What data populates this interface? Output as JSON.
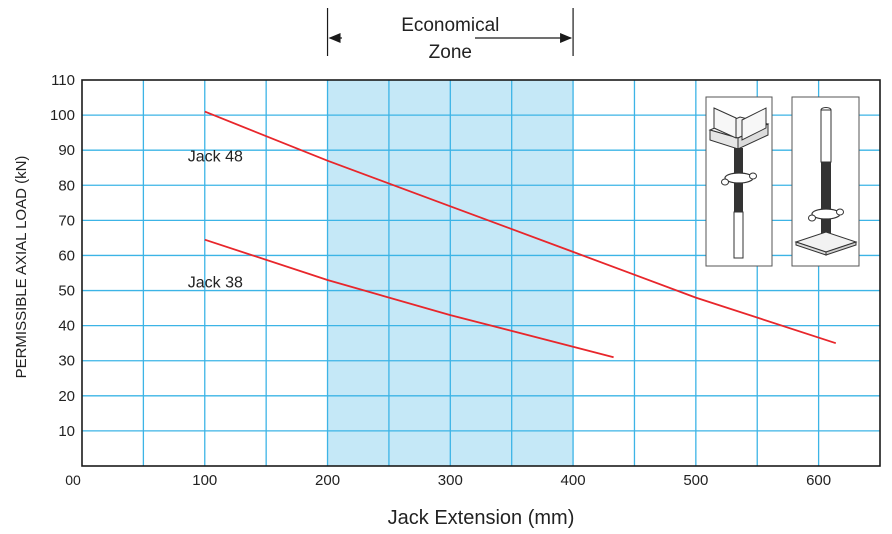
{
  "chart_data": {
    "type": "line",
    "xlabel": "Jack Extension (mm)",
    "ylabel": "PERMISSIBLE AXIAL LOAD (kN)",
    "xlim": [
      0,
      650
    ],
    "ylim": [
      0,
      110
    ],
    "x_ticks": [
      100,
      200,
      300,
      400,
      500,
      600
    ],
    "y_ticks": [
      10,
      20,
      30,
      40,
      50,
      60,
      70,
      80,
      90,
      100,
      110
    ],
    "origin_label": "00",
    "grid": true,
    "series": [
      {
        "name": "Jack 48",
        "x": [
          100,
          200,
          300,
          400,
          500,
          614
        ],
        "y": [
          101,
          87,
          74,
          61,
          48,
          35
        ]
      },
      {
        "name": "Jack 38",
        "x": [
          100,
          200,
          300,
          400,
          433
        ],
        "y": [
          64.5,
          53,
          43,
          34,
          31
        ]
      }
    ],
    "highlight_band": {
      "x_start": 200,
      "x_end": 400,
      "label_line1": "Economical",
      "label_line2": "Zone"
    },
    "colors": {
      "line": "#e8262b",
      "grid": "#3cb4e6",
      "band": "#c5e8f7",
      "axis": "#1a1a1a"
    }
  }
}
